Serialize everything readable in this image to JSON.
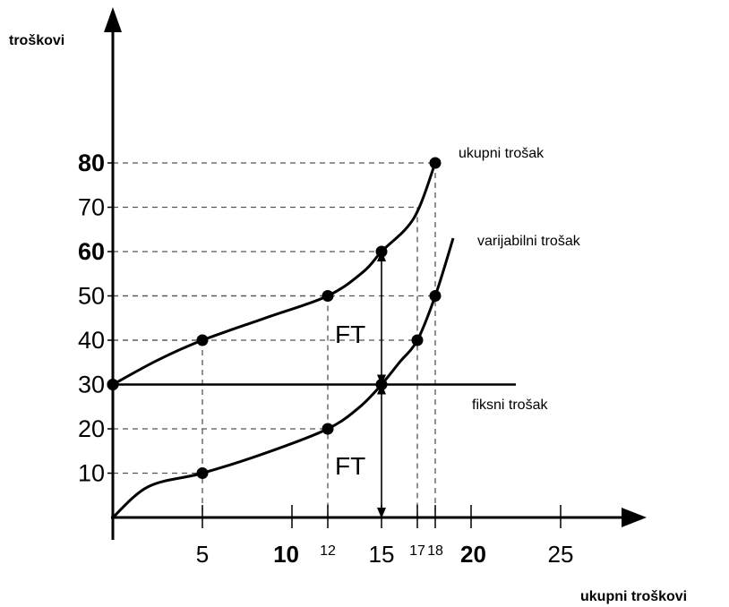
{
  "chart_data": {
    "type": "line",
    "ylabel": "troškovi",
    "xlabel": "ukupni troškovi",
    "xlim": [
      0,
      29
    ],
    "ylim": [
      0,
      95
    ],
    "y_ticks": [
      {
        "value": 10,
        "label": "10",
        "bold": false
      },
      {
        "value": 20,
        "label": "20",
        "bold": false
      },
      {
        "value": 30,
        "label": "30",
        "bold": false
      },
      {
        "value": 40,
        "label": "40",
        "bold": false
      },
      {
        "value": 50,
        "label": "50",
        "bold": false
      },
      {
        "value": 60,
        "label": "60",
        "bold": true
      },
      {
        "value": 70,
        "label": "70",
        "bold": false
      },
      {
        "value": 80,
        "label": "80",
        "bold": true
      }
    ],
    "x_ticks": [
      {
        "value": 5,
        "label": "5",
        "size": "large",
        "bold": false
      },
      {
        "value": 10,
        "label": "10",
        "size": "large",
        "bold": true
      },
      {
        "value": 12,
        "label": "12",
        "size": "small",
        "bold": false
      },
      {
        "value": 15,
        "label": "15",
        "size": "large",
        "bold": false
      },
      {
        "value": 17,
        "label": "17",
        "size": "small",
        "bold": false
      },
      {
        "value": 18,
        "label": "18",
        "size": "small",
        "bold": false
      },
      {
        "value": 20,
        "label": "20",
        "size": "large",
        "bold": true
      },
      {
        "value": 25,
        "label": "25",
        "size": "large",
        "bold": false
      }
    ],
    "series": [
      {
        "name": "ukupni trošak",
        "points": [
          [
            0,
            30
          ],
          [
            5,
            40
          ],
          [
            12,
            50
          ],
          [
            15,
            60
          ],
          [
            18,
            80
          ]
        ],
        "curve": [
          [
            0,
            30
          ],
          [
            2.5,
            35.5
          ],
          [
            5,
            40
          ],
          [
            8.5,
            45
          ],
          [
            12,
            50
          ],
          [
            14,
            55.5
          ],
          [
            15,
            60
          ],
          [
            16.8,
            67.5
          ],
          [
            18,
            80
          ]
        ]
      },
      {
        "name": "varijabilni trošak",
        "points": [
          [
            5,
            10
          ],
          [
            12,
            20
          ],
          [
            15,
            30
          ],
          [
            17,
            40
          ],
          [
            18,
            50
          ]
        ],
        "curve": [
          [
            0,
            0
          ],
          [
            2,
            7
          ],
          [
            5,
            10
          ],
          [
            8.5,
            14.5
          ],
          [
            12,
            20
          ],
          [
            13.8,
            25
          ],
          [
            15,
            30
          ],
          [
            16,
            35
          ],
          [
            17,
            40
          ],
          [
            18,
            50
          ],
          [
            19,
            63
          ]
        ]
      },
      {
        "name": "fiksni trošak",
        "points": [
          [
            0,
            30
          ]
        ],
        "curve": [
          [
            0,
            30
          ],
          [
            22.5,
            30
          ]
        ]
      }
    ],
    "guides": [
      {
        "point": [
          5,
          40
        ],
        "to_axis": "both"
      },
      {
        "point": [
          12,
          50
        ],
        "to_axis": "both"
      },
      {
        "point": [
          15,
          60
        ],
        "to_axis": "y"
      },
      {
        "point": [
          18,
          80
        ],
        "to_axis": "both"
      },
      {
        "point": [
          5,
          10
        ],
        "to_axis": "y"
      },
      {
        "point": [
          12,
          20
        ],
        "to_axis": "y"
      },
      {
        "point": [
          17,
          40
        ],
        "to_axis": "y"
      },
      {
        "point": [
          18,
          50
        ],
        "to_axis": "y"
      },
      {
        "point": [
          17,
          70
        ],
        "to_axis": "both"
      }
    ],
    "annotations": [
      {
        "text": "FT",
        "span": [
          [
            15,
            60
          ],
          [
            15,
            30
          ]
        ]
      },
      {
        "text": "FT",
        "span": [
          [
            15,
            30
          ],
          [
            15,
            0
          ]
        ]
      }
    ]
  }
}
